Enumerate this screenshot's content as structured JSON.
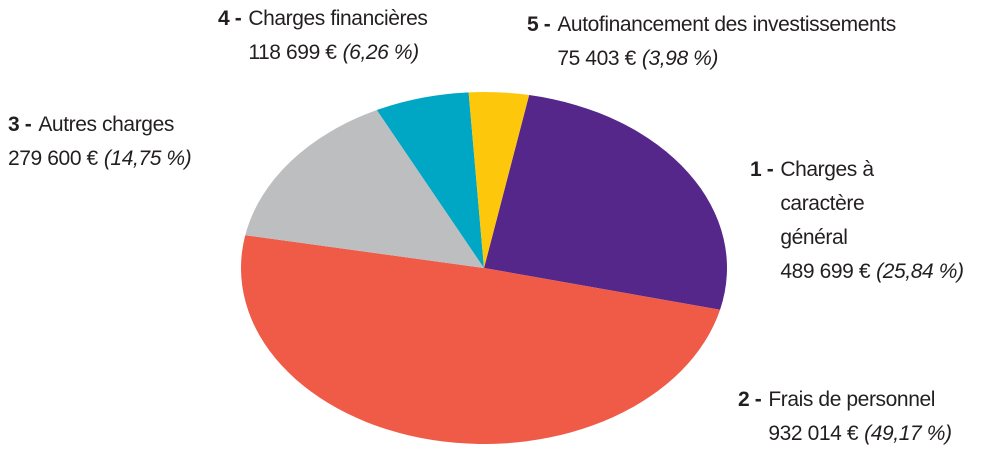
{
  "chart_data": {
    "type": "pie",
    "numbers": [
      "1 -",
      "2 -",
      "3 -",
      "4 -",
      "5 -"
    ],
    "categories": [
      "Charges à caractère général",
      "Frais de personnel",
      "Autres charges",
      "Charges financières",
      "Autofinancement des investissements"
    ],
    "values": [
      25.84,
      49.17,
      14.75,
      6.26,
      3.98
    ],
    "value_labels": [
      "(25,84 %)",
      "(49,17 %)",
      "(14,75 %)",
      "(6,26 %)",
      "(3,98 %)"
    ],
    "amount_labels": [
      "489 699 €",
      "932 014 €",
      "279 600 €",
      "118 699 €",
      "75 403 €"
    ],
    "colors": [
      "#56278a",
      "#ef5b47",
      "#bdbec0",
      "#00a7c4",
      "#fdc80b"
    ]
  }
}
